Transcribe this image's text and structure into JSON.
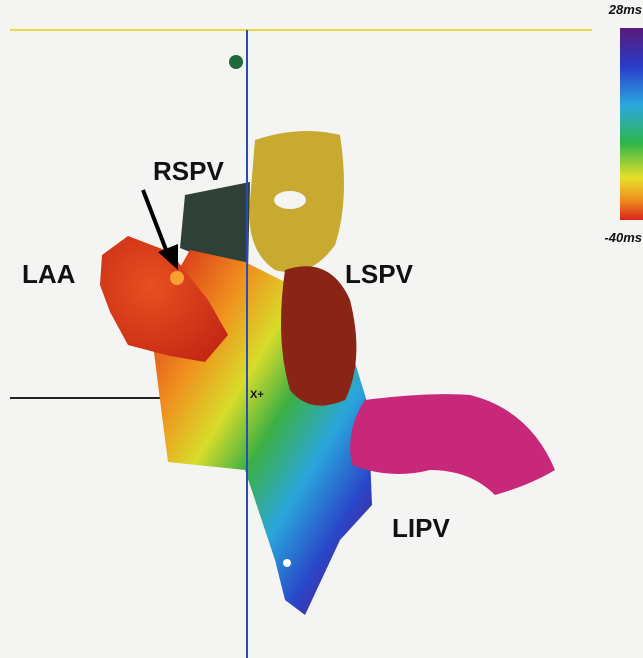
{
  "labels": {
    "rspv": "RSPV",
    "laa": "LAA",
    "lspv": "LSPV",
    "lipv": "LIPV",
    "cursor": "X+"
  },
  "colorbar": {
    "max_label": "28ms",
    "min_label": "-40ms"
  }
}
